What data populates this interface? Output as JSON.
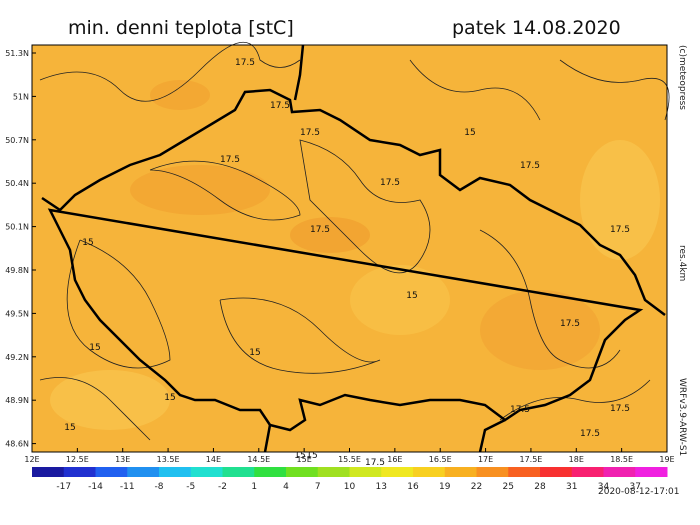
{
  "header": {
    "title": "min. denni teplota [stC]",
    "date": "patek 14.08.2020"
  },
  "lat_labels": [
    "51.3N",
    "51N",
    "50.7N",
    "50.4N",
    "50.1N",
    "49.8N",
    "49.5N",
    "49.2N",
    "48.9N",
    "48.6N"
  ],
  "lon_labels": [
    "12E",
    "12.5E",
    "13E",
    "13.5E",
    "14E",
    "14.5E",
    "15E",
    "15.5E",
    "16E",
    "16.5E",
    "17E",
    "17.5E",
    "18E",
    "18.5E",
    "19E"
  ],
  "colorbar": {
    "labels": [
      "-17",
      "-14",
      "-11",
      "-8",
      "-5",
      "-2",
      "1",
      "4",
      "7",
      "10",
      "13",
      "16",
      "19",
      "22",
      "25",
      "28",
      "31",
      "34",
      "37"
    ],
    "colors": [
      "#1a1aa0",
      "#2030d0",
      "#2060f0",
      "#2090f0",
      "#20c0f0",
      "#20e0d0",
      "#20e090",
      "#30e040",
      "#70e020",
      "#a0e020",
      "#d0e820",
      "#f0e820",
      "#f8d020",
      "#f8b020",
      "#f89020",
      "#f86020",
      "#f83030",
      "#f82070",
      "#f020b0",
      "#f020e0"
    ]
  },
  "contour_labels": [
    "17.5",
    "17.5",
    "17.5",
    "17.5",
    "17.5",
    "17.5",
    "17.5",
    "17.5",
    "17.5",
    "17.5",
    "15",
    "15",
    "15",
    "15",
    "15",
    "15",
    "15",
    "15",
    "17.5",
    "17.5",
    "17.5",
    "15"
  ],
  "side": {
    "credit": "(c)meteopress",
    "resolution": "res.4km",
    "model": "WRFv3.9-ARW-S1",
    "run_time": "2020-08-12-17:01"
  }
}
